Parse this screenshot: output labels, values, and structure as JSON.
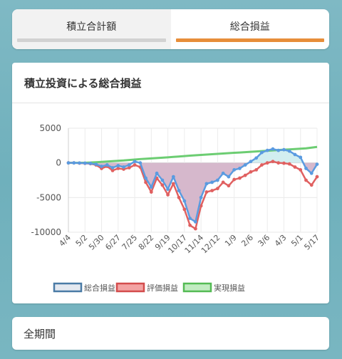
{
  "tabs": [
    {
      "label": "積立合計額",
      "active": false,
      "bar_color": "#d2d2d2"
    },
    {
      "label": "総合損益",
      "active": true,
      "bar_color": "#e78e3a"
    }
  ],
  "card": {
    "title": "積立投資による総合損益"
  },
  "period": {
    "label": "全期間"
  },
  "colors": {
    "total": "#5a9be0",
    "total_fill_pos": "#d2eef0",
    "total_fill_neg": "#d6b8cc",
    "valuation": "#e06060",
    "realized": "#6ccd72",
    "legend_total_fill": "#e4e9f0",
    "legend_total_border": "#4a7ba6",
    "legend_val_fill": "#f3a3a3",
    "legend_val_border": "#d34d4d",
    "legend_real_fill": "#c2ecc2",
    "legend_real_border": "#54bb54"
  },
  "chart_data": {
    "type": "line",
    "x_tick_labels": [
      "4/4",
      "5/2",
      "5/30",
      "6/27",
      "7/25",
      "8/22",
      "9/19",
      "10/17",
      "11/14",
      "12/12",
      "1/9",
      "2/6",
      "3/6",
      "4/3",
      "5/1",
      "5/17"
    ],
    "y_ticks": [
      5000,
      0,
      -5000,
      -10000
    ],
    "y_tick_labels": [
      "5000",
      "0",
      "-5000",
      "-10000"
    ],
    "ylim": [
      -10000,
      5000
    ],
    "grid": true,
    "legend_position": "bottom",
    "series": [
      {
        "name": "総合損益",
        "values": [
          0,
          0,
          -20,
          -40,
          -80,
          -200,
          -500,
          -300,
          -700,
          -400,
          -600,
          -300,
          200,
          0,
          -2200,
          -3500,
          -1500,
          -2500,
          -3800,
          -2000,
          -4000,
          -5500,
          -8000,
          -8500,
          -5000,
          -3000,
          -2800,
          -2500,
          -1500,
          -2000,
          -1000,
          -800,
          -300,
          200,
          700,
          1500,
          1800,
          2000,
          1800,
          1900,
          1700,
          1200,
          800,
          -800,
          -1500,
          -200
        ]
      },
      {
        "name": "評価損益",
        "values": [
          0,
          0,
          -30,
          -60,
          -120,
          -300,
          -800,
          -500,
          -1100,
          -800,
          -900,
          -700,
          -300,
          -600,
          -2800,
          -4200,
          -2200,
          -3200,
          -4600,
          -3000,
          -5000,
          -6700,
          -9000,
          -9500,
          -6200,
          -4200,
          -4000,
          -3700,
          -2800,
          -3300,
          -2400,
          -2200,
          -1800,
          -1300,
          -1000,
          -300,
          0,
          200,
          0,
          -50,
          -150,
          -600,
          -1000,
          -2500,
          -3200,
          -2000
        ]
      },
      {
        "name": "実現損益",
        "values": [
          0,
          0,
          0,
          20,
          50,
          100,
          150,
          200,
          250,
          300,
          350,
          420,
          480,
          550,
          600,
          650,
          700,
          750,
          800,
          860,
          920,
          980,
          1050,
          1100,
          1150,
          1200,
          1250,
          1300,
          1350,
          1400,
          1450,
          1500,
          1550,
          1600,
          1650,
          1700,
          1750,
          1800,
          1850,
          1900,
          1950,
          2000,
          2050,
          2100,
          2200,
          2300
        ]
      }
    ]
  }
}
